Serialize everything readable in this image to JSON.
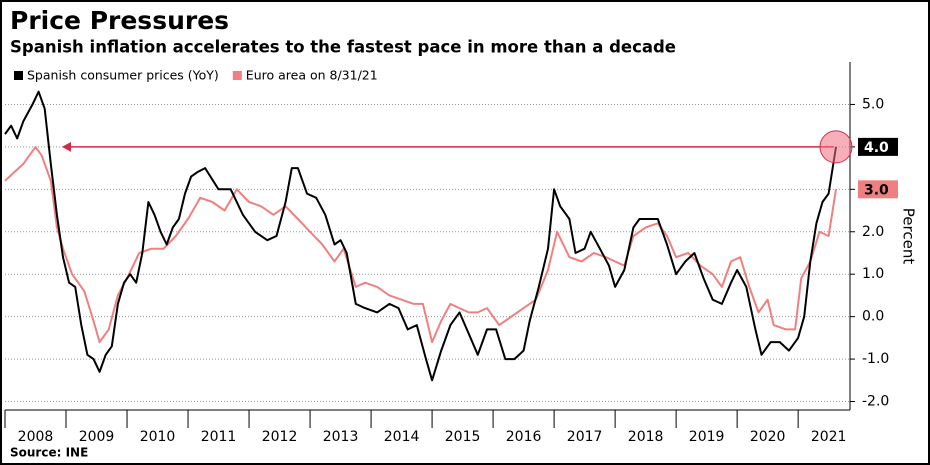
{
  "chart_data": {
    "type": "line",
    "title": "Price Pressures",
    "subtitle": "Spanish inflation accelerates to the fastest pace in more than a decade",
    "y_label": "Percent",
    "source": "Source: INE",
    "legend": "top-left",
    "grid": true,
    "xlim": [
      2008,
      2021.85
    ],
    "xticks": [
      2008,
      2009,
      2010,
      2011,
      2012,
      2013,
      2014,
      2015,
      2016,
      2017,
      2018,
      2019,
      2020,
      2021
    ],
    "ylim": [
      -2.2,
      6
    ],
    "yticks": [
      {
        "value": 5,
        "label": "5.0"
      },
      {
        "value": 4,
        "label": "4.0"
      },
      {
        "value": 3,
        "label": "3.0"
      },
      {
        "value": 2,
        "label": "2.0"
      },
      {
        "value": 1,
        "label": "1.0"
      },
      {
        "value": 0,
        "label": "0.0"
      },
      {
        "value": -1,
        "label": "-1.0"
      },
      {
        "value": -2,
        "label": "-2.0"
      }
    ],
    "series": [
      {
        "name": "Spanish consumer prices (YoY)",
        "color": "#000000",
        "end_label": "4.0",
        "x": [
          2008.0,
          2008.1,
          2008.2,
          2008.3,
          2008.45,
          2008.55,
          2008.65,
          2008.75,
          2008.85,
          2008.95,
          2009.05,
          2009.15,
          2009.25,
          2009.35,
          2009.45,
          2009.55,
          2009.65,
          2009.75,
          2009.85,
          2009.95,
          2010.05,
          2010.15,
          2010.25,
          2010.35,
          2010.45,
          2010.55,
          2010.65,
          2010.75,
          2010.85,
          2010.95,
          2011.05,
          2011.15,
          2011.28,
          2011.5,
          2011.7,
          2011.9,
          2012.1,
          2012.3,
          2012.45,
          2012.6,
          2012.7,
          2012.8,
          2012.95,
          2013.1,
          2013.25,
          2013.4,
          2013.5,
          2013.6,
          2013.75,
          2013.9,
          2014.1,
          2014.3,
          2014.45,
          2014.6,
          2014.75,
          2014.9,
          2015.0,
          2015.15,
          2015.3,
          2015.45,
          2015.6,
          2015.75,
          2015.9,
          2016.05,
          2016.2,
          2016.35,
          2016.5,
          2016.6,
          2016.75,
          2016.9,
          2017.0,
          2017.1,
          2017.25,
          2017.35,
          2017.5,
          2017.6,
          2017.75,
          2017.9,
          2018.0,
          2018.15,
          2018.3,
          2018.4,
          2018.55,
          2018.7,
          2018.85,
          2019.0,
          2019.15,
          2019.3,
          2019.45,
          2019.6,
          2019.75,
          2019.9,
          2020.0,
          2020.15,
          2020.3,
          2020.4,
          2020.55,
          2020.7,
          2020.85,
          2021.0,
          2021.1,
          2021.2,
          2021.3,
          2021.4,
          2021.5,
          2021.62
        ],
        "values": [
          4.3,
          4.5,
          4.2,
          4.6,
          5.0,
          5.3,
          4.9,
          3.6,
          2.4,
          1.4,
          0.8,
          0.7,
          -0.2,
          -0.9,
          -1.0,
          -1.3,
          -0.9,
          -0.7,
          0.3,
          0.8,
          1.0,
          0.8,
          1.5,
          2.7,
          2.4,
          2.0,
          1.7,
          2.1,
          2.3,
          2.9,
          3.3,
          3.4,
          3.5,
          3.0,
          3.0,
          2.4,
          2.0,
          1.8,
          1.9,
          2.7,
          3.5,
          3.5,
          2.9,
          2.8,
          2.4,
          1.7,
          1.8,
          1.5,
          0.3,
          0.2,
          0.1,
          0.3,
          0.2,
          -0.3,
          -0.2,
          -1.0,
          -1.5,
          -0.8,
          -0.2,
          0.1,
          -0.4,
          -0.9,
          -0.3,
          -0.3,
          -1.0,
          -1.0,
          -0.8,
          -0.1,
          0.7,
          1.6,
          3.0,
          2.6,
          2.3,
          1.5,
          1.6,
          2.0,
          1.6,
          1.2,
          0.7,
          1.1,
          2.1,
          2.3,
          2.3,
          2.3,
          1.7,
          1.0,
          1.3,
          1.5,
          0.9,
          0.4,
          0.3,
          0.8,
          1.1,
          0.7,
          -0.3,
          -0.9,
          -0.6,
          -0.6,
          -0.8,
          -0.5,
          0.0,
          1.3,
          2.2,
          2.7,
          2.9,
          4.0
        ]
      },
      {
        "name": "Euro area on 8/31/21",
        "color": "#f08080",
        "end_label": "3.0",
        "x": [
          2008.0,
          2008.3,
          2008.5,
          2008.6,
          2008.75,
          2008.85,
          2008.95,
          2009.1,
          2009.3,
          2009.45,
          2009.55,
          2009.7,
          2009.85,
          2010.0,
          2010.2,
          2010.4,
          2010.6,
          2010.8,
          2011.0,
          2011.2,
          2011.4,
          2011.6,
          2011.8,
          2012.0,
          2012.2,
          2012.4,
          2012.6,
          2012.8,
          2013.0,
          2013.2,
          2013.4,
          2013.55,
          2013.75,
          2013.9,
          2014.1,
          2014.3,
          2014.5,
          2014.7,
          2014.85,
          2015.0,
          2015.15,
          2015.3,
          2015.45,
          2015.6,
          2015.75,
          2015.9,
          2016.1,
          2016.3,
          2016.5,
          2016.7,
          2016.9,
          2017.05,
          2017.25,
          2017.45,
          2017.65,
          2017.85,
          2018.0,
          2018.15,
          2018.3,
          2018.5,
          2018.7,
          2018.85,
          2019.0,
          2019.2,
          2019.4,
          2019.6,
          2019.75,
          2019.9,
          2020.05,
          2020.2,
          2020.35,
          2020.5,
          2020.6,
          2020.8,
          2020.95,
          2021.05,
          2021.2,
          2021.35,
          2021.5,
          2021.62
        ],
        "values": [
          3.2,
          3.6,
          4.0,
          3.8,
          3.2,
          2.1,
          1.6,
          1.0,
          0.6,
          -0.1,
          -0.6,
          -0.3,
          0.5,
          0.9,
          1.5,
          1.6,
          1.6,
          1.9,
          2.3,
          2.8,
          2.7,
          2.5,
          3.0,
          2.7,
          2.6,
          2.4,
          2.6,
          2.3,
          2.0,
          1.7,
          1.3,
          1.6,
          0.7,
          0.8,
          0.7,
          0.5,
          0.4,
          0.3,
          0.3,
          -0.6,
          -0.1,
          0.3,
          0.2,
          0.1,
          0.1,
          0.2,
          -0.2,
          0.0,
          0.2,
          0.4,
          1.1,
          2.0,
          1.4,
          1.3,
          1.5,
          1.4,
          1.3,
          1.2,
          1.9,
          2.1,
          2.2,
          1.9,
          1.4,
          1.5,
          1.2,
          1.0,
          0.7,
          1.3,
          1.4,
          0.7,
          0.1,
          0.4,
          -0.2,
          -0.3,
          -0.3,
          0.9,
          1.3,
          2.0,
          1.9,
          3.0
        ]
      }
    ]
  }
}
